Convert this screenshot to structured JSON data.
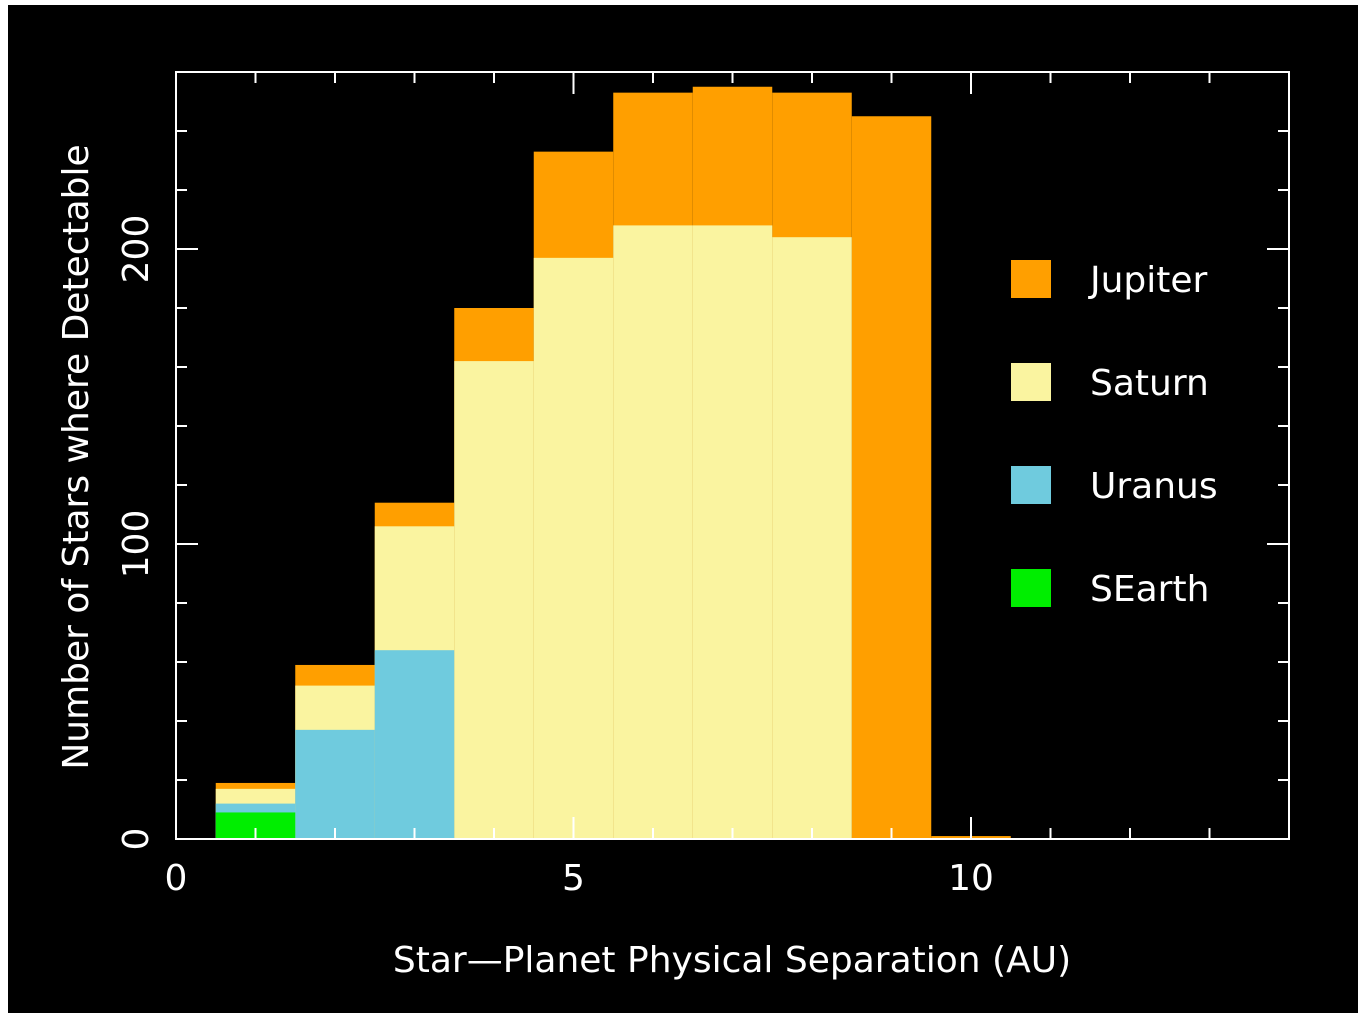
{
  "chart_data": {
    "type": "bar",
    "stacked": false,
    "overlaid": true,
    "xlabel": "Star—Planet Physical Separation (AU)",
    "ylabel": "Number of Stars where Detectable",
    "xlim": [
      0,
      14
    ],
    "ylim": [
      0,
      260
    ],
    "x_ticks": [
      "0",
      "5",
      "10"
    ],
    "y_ticks": [
      "0",
      "100",
      "200"
    ],
    "bin_edges": [
      0.5,
      1.5,
      2.5,
      3.5,
      4.5,
      5.5,
      6.5,
      7.5,
      8.5,
      9.5,
      10.5
    ],
    "series": [
      {
        "name": "Jupiter",
        "color": "#FF9F00",
        "values": [
          19,
          59,
          114,
          180,
          233,
          253,
          255,
          253,
          245,
          1
        ]
      },
      {
        "name": "Saturn",
        "color": "#FAF4A0",
        "values": [
          17,
          52,
          106,
          162,
          197,
          208,
          208,
          204,
          0,
          0
        ]
      },
      {
        "name": "Uranus",
        "color": "#6FCBDE",
        "values": [
          12,
          37,
          64,
          0,
          0,
          0,
          0,
          0,
          0,
          0
        ]
      },
      {
        "name": "SEarth",
        "color": "#00EE00",
        "values": [
          9,
          0,
          0,
          0,
          0,
          0,
          0,
          0,
          0,
          0
        ]
      }
    ],
    "legend_position": "right",
    "grid": false
  }
}
